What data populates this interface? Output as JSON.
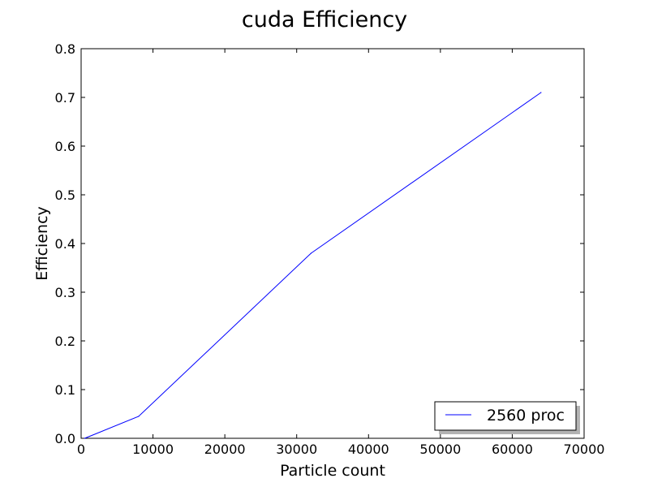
{
  "chart_data": {
    "type": "line",
    "title": "cuda Efficiency",
    "xlabel": "Particle count",
    "ylabel": "Efficiency",
    "xlim": [
      0,
      70000
    ],
    "ylim": [
      0,
      0.8
    ],
    "xticks": [
      0,
      10000,
      20000,
      30000,
      40000,
      50000,
      60000,
      70000
    ],
    "xtick_labels": [
      "0",
      "10000",
      "20000",
      "30000",
      "40000",
      "50000",
      "60000",
      "70000"
    ],
    "yticks": [
      0,
      0.1,
      0.2,
      0.3,
      0.4,
      0.5,
      0.6,
      0.7,
      0.8
    ],
    "ytick_labels": [
      "0.0",
      "0.1",
      "0.2",
      "0.3",
      "0.4",
      "0.5",
      "0.6",
      "0.7",
      "0.8"
    ],
    "grid": false,
    "legend_position": "lower-right",
    "series": [
      {
        "name": "2560 proc",
        "color": "#0000ff",
        "x": [
          500,
          8000,
          32000,
          64000
        ],
        "y": [
          0.0,
          0.045,
          0.38,
          0.71
        ]
      }
    ]
  }
}
